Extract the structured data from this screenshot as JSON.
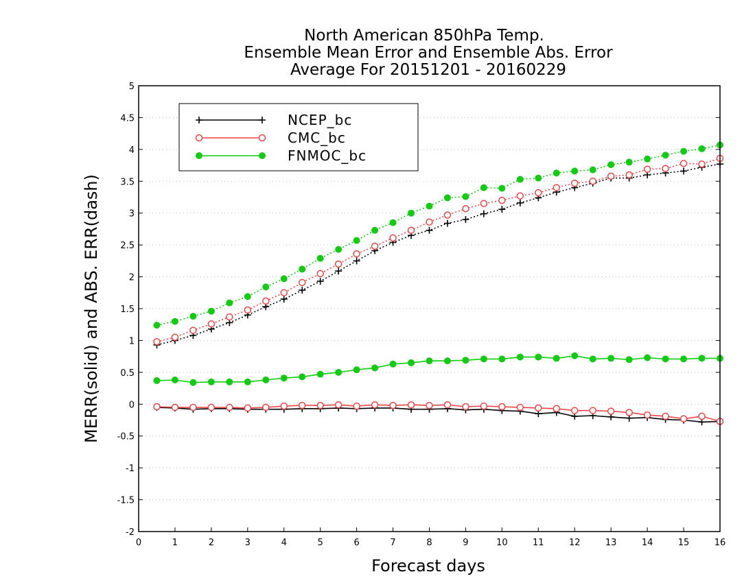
{
  "chart_data": {
    "type": "line",
    "title_lines": [
      "North American 850hPa Temp.",
      "Ensemble Mean Error and Ensemble Abs. Error",
      "Average For 20151201 - 20160229"
    ],
    "xlabel": "Forecast days",
    "ylabel": "MERR(solid) and ABS. ERR(dash)",
    "xlim": [
      0,
      16
    ],
    "ylim": [
      -2,
      5
    ],
    "x_ticks": [
      "0",
      "1",
      "2",
      "3",
      "4",
      "5",
      "6",
      "7",
      "8",
      "9",
      "10",
      "11",
      "12",
      "13",
      "14",
      "15",
      "16"
    ],
    "y_ticks": [
      "-2",
      "-1.5",
      "-1",
      "-0.5",
      "0",
      "0.5",
      "1",
      "1.5",
      "2",
      "2.5",
      "3",
      "3.5",
      "4",
      "4.5",
      "5"
    ],
    "grid": "horizontal dotted",
    "legend_position": "top-left",
    "x": [
      0.5,
      1,
      1.5,
      2,
      2.5,
      3,
      3.5,
      4,
      4.5,
      5,
      5.5,
      6,
      6.5,
      7,
      7.5,
      8,
      8.5,
      9,
      9.5,
      10,
      10.5,
      11,
      11.5,
      12,
      12.5,
      13,
      13.5,
      14,
      14.5,
      15,
      15.5,
      16
    ],
    "series": [
      {
        "name": "NCEP_bc",
        "color": "#000000",
        "marker": "plus",
        "mean_error": [
          -0.05,
          -0.06,
          -0.08,
          -0.07,
          -0.07,
          -0.08,
          -0.08,
          -0.08,
          -0.07,
          -0.07,
          -0.06,
          -0.07,
          -0.06,
          -0.06,
          -0.08,
          -0.08,
          -0.07,
          -0.09,
          -0.08,
          -0.1,
          -0.11,
          -0.15,
          -0.13,
          -0.19,
          -0.18,
          -0.2,
          -0.22,
          -0.21,
          -0.24,
          -0.25,
          -0.28,
          -0.27
        ],
        "abs_error": [
          0.93,
          1.0,
          1.08,
          1.18,
          1.28,
          1.4,
          1.53,
          1.65,
          1.79,
          1.93,
          2.09,
          2.25,
          2.41,
          2.54,
          2.65,
          2.73,
          2.84,
          2.9,
          2.99,
          3.06,
          3.16,
          3.24,
          3.33,
          3.4,
          3.47,
          3.55,
          3.55,
          3.6,
          3.63,
          3.66,
          3.72,
          3.77
        ]
      },
      {
        "name": "CMC_bc",
        "color": "#ee4444",
        "marker": "open-circle",
        "mean_error": [
          -0.04,
          -0.05,
          -0.05,
          -0.05,
          -0.05,
          -0.06,
          -0.05,
          -0.03,
          -0.02,
          -0.02,
          -0.01,
          -0.03,
          -0.01,
          -0.02,
          -0.01,
          -0.02,
          -0.01,
          -0.04,
          -0.03,
          -0.04,
          -0.05,
          -0.06,
          -0.07,
          -0.1,
          -0.1,
          -0.11,
          -0.13,
          -0.17,
          -0.19,
          -0.23,
          -0.19,
          -0.27
        ],
        "abs_error": [
          0.98,
          1.05,
          1.16,
          1.26,
          1.37,
          1.48,
          1.62,
          1.75,
          1.91,
          2.05,
          2.2,
          2.36,
          2.48,
          2.61,
          2.73,
          2.86,
          2.97,
          3.07,
          3.15,
          3.2,
          3.27,
          3.32,
          3.4,
          3.47,
          3.5,
          3.58,
          3.6,
          3.69,
          3.7,
          3.78,
          3.77,
          3.86
        ]
      },
      {
        "name": "FNMOC_bc",
        "color": "#11cc11",
        "marker": "filled-circle",
        "mean_error": [
          0.37,
          0.38,
          0.34,
          0.35,
          0.35,
          0.35,
          0.38,
          0.41,
          0.43,
          0.47,
          0.5,
          0.54,
          0.57,
          0.63,
          0.65,
          0.68,
          0.68,
          0.69,
          0.71,
          0.71,
          0.74,
          0.74,
          0.72,
          0.76,
          0.71,
          0.72,
          0.7,
          0.73,
          0.71,
          0.71,
          0.72,
          0.72
        ],
        "abs_error": [
          1.24,
          1.3,
          1.38,
          1.46,
          1.59,
          1.69,
          1.84,
          1.97,
          2.12,
          2.29,
          2.43,
          2.57,
          2.73,
          2.85,
          3.0,
          3.11,
          3.24,
          3.26,
          3.4,
          3.39,
          3.53,
          3.55,
          3.63,
          3.66,
          3.68,
          3.76,
          3.8,
          3.85,
          3.91,
          3.97,
          4.01,
          4.07
        ]
      }
    ]
  }
}
